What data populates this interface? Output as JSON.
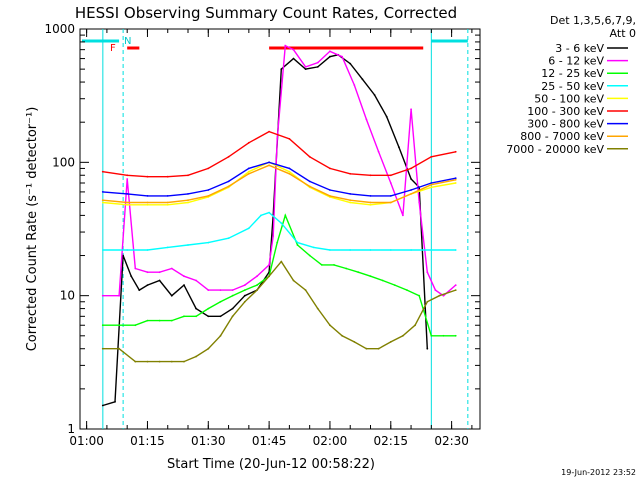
{
  "chart_data": {
    "type": "line",
    "title": "HESSI Observing Summary Count Rates, Corrected",
    "xlabel": "Start Time (20-Jun-12 00:58:22)",
    "ylabel": "Corrected Count Rate (s⁻¹ detector⁻¹)",
    "y_scale": "log",
    "ylim": [
      1,
      1000
    ],
    "xlim": [
      "00:58:22",
      "02:37:00"
    ],
    "x_ticks": [
      "01:00",
      "01:15",
      "01:30",
      "01:45",
      "02:00",
      "02:15",
      "02:30"
    ],
    "y_ticks": [
      "1",
      "10",
      "100",
      "1000"
    ],
    "legend_header": [
      "Det 1,3,5,6,7,9,",
      "Att 0"
    ],
    "timestamp": "19-Jun-2012 23:52",
    "annotations": {
      "flag_F": "F",
      "flag_N": "N"
    },
    "series": [
      {
        "name": "3 - 6 keV",
        "color": "#000000",
        "x": [
          "01:04",
          "01:07",
          "01:09",
          "01:11",
          "01:13",
          "01:15",
          "01:18",
          "01:21",
          "01:24",
          "01:27",
          "01:30",
          "01:33",
          "01:36",
          "01:39",
          "01:42",
          "01:45",
          "01:46",
          "01:48",
          "01:51",
          "01:54",
          "01:57",
          "02:00",
          "02:02",
          "02:05",
          "02:08",
          "02:11",
          "02:14",
          "02:17",
          "02:20",
          "02:22",
          "02:24"
        ],
        "y": [
          1.5,
          1.6,
          20,
          14,
          11,
          12,
          13,
          10,
          12,
          8,
          7,
          7,
          8,
          10,
          11,
          15,
          40,
          500,
          600,
          500,
          520,
          620,
          640,
          550,
          420,
          320,
          220,
          130,
          75,
          65,
          4
        ]
      },
      {
        "name": "6 - 12 keV",
        "color": "#ff00ff",
        "x": [
          "01:04",
          "01:08",
          "01:10",
          "01:12",
          "01:15",
          "01:18",
          "01:21",
          "01:24",
          "01:27",
          "01:30",
          "01:33",
          "01:36",
          "01:39",
          "01:42",
          "01:45",
          "01:46",
          "01:47",
          "01:49",
          "01:51",
          "01:54",
          "01:57",
          "02:00",
          "02:03",
          "02:06",
          "02:09",
          "02:12",
          "02:15",
          "02:18",
          "02:20",
          "02:22",
          "02:24",
          "02:26",
          "02:28",
          "02:31"
        ],
        "y": [
          10,
          10,
          75,
          16,
          15,
          15,
          16,
          14,
          13,
          11,
          11,
          11,
          12,
          14,
          17,
          28,
          150,
          750,
          700,
          520,
          560,
          680,
          620,
          380,
          210,
          120,
          70,
          40,
          250,
          50,
          15,
          11,
          10,
          12
        ]
      },
      {
        "name": "12 - 25 keV",
        "color": "#00ff00",
        "x": [
          "01:04",
          "01:08",
          "01:12",
          "01:15",
          "01:18",
          "01:21",
          "01:24",
          "01:27",
          "01:30",
          "01:33",
          "01:36",
          "01:39",
          "01:42",
          "01:45",
          "01:47",
          "01:49",
          "01:52",
          "01:55",
          "01:58",
          "02:01",
          "02:04",
          "02:07",
          "02:10",
          "02:13",
          "02:16",
          "02:19",
          "02:22",
          "02:25",
          "02:28",
          "02:31"
        ],
        "y": [
          6,
          6,
          6,
          6.5,
          6.5,
          6.5,
          7,
          7,
          8,
          9,
          10,
          11,
          12,
          14,
          25,
          40,
          24,
          20,
          17,
          17,
          16,
          15,
          14,
          13,
          12,
          11,
          10,
          5,
          5,
          5
        ]
      },
      {
        "name": "25 - 50 keV",
        "color": "#00ffff",
        "x": [
          "01:04",
          "01:10",
          "01:15",
          "01:20",
          "01:25",
          "01:30",
          "01:35",
          "01:40",
          "01:43",
          "01:45",
          "01:48",
          "01:52",
          "01:56",
          "02:00",
          "02:05",
          "02:10",
          "02:15",
          "02:20",
          "02:25",
          "02:31"
        ],
        "y": [
          22,
          22,
          22,
          23,
          24,
          25,
          27,
          32,
          40,
          42,
          35,
          25,
          23,
          22,
          22,
          22,
          22,
          22,
          22,
          22
        ]
      },
      {
        "name": "50 - 100 keV",
        "color": "#ffff00",
        "x": [
          "01:04",
          "01:10",
          "01:15",
          "01:20",
          "01:25",
          "01:30",
          "01:35",
          "01:40",
          "01:45",
          "01:50",
          "01:55",
          "02:00",
          "02:05",
          "02:10",
          "02:15",
          "02:20",
          "02:25",
          "02:31"
        ],
        "y": [
          50,
          48,
          48,
          48,
          50,
          55,
          65,
          85,
          100,
          85,
          65,
          55,
          50,
          48,
          50,
          58,
          65,
          70
        ]
      },
      {
        "name": "100 - 300 keV",
        "color": "#ff0000",
        "x": [
          "01:04",
          "01:10",
          "01:15",
          "01:20",
          "01:25",
          "01:30",
          "01:35",
          "01:40",
          "01:45",
          "01:50",
          "01:55",
          "02:00",
          "02:05",
          "02:10",
          "02:15",
          "02:20",
          "02:25",
          "02:31"
        ],
        "y": [
          85,
          80,
          78,
          78,
          80,
          90,
          110,
          140,
          170,
          150,
          110,
          90,
          82,
          80,
          80,
          90,
          110,
          120
        ]
      },
      {
        "name": "300 - 800 keV",
        "color": "#0000ff",
        "x": [
          "01:04",
          "01:10",
          "01:15",
          "01:20",
          "01:25",
          "01:30",
          "01:35",
          "01:40",
          "01:45",
          "01:50",
          "01:55",
          "02:00",
          "02:05",
          "02:10",
          "02:15",
          "02:20",
          "02:25",
          "02:31"
        ],
        "y": [
          60,
          58,
          56,
          56,
          58,
          62,
          72,
          90,
          100,
          90,
          72,
          62,
          58,
          56,
          56,
          62,
          70,
          76
        ]
      },
      {
        "name": "800 - 7000 keV",
        "color": "#ffa500",
        "x": [
          "01:04",
          "01:10",
          "01:15",
          "01:20",
          "01:25",
          "01:30",
          "01:35",
          "01:40",
          "01:45",
          "01:50",
          "01:55",
          "02:00",
          "02:05",
          "02:10",
          "02:15",
          "02:20",
          "02:25",
          "02:31"
        ],
        "y": [
          52,
          50,
          50,
          50,
          52,
          56,
          66,
          82,
          95,
          82,
          66,
          56,
          52,
          50,
          50,
          58,
          68,
          74
        ]
      },
      {
        "name": "7000 - 20000 keV",
        "color": "#808000",
        "x": [
          "01:04",
          "01:08",
          "01:12",
          "01:15",
          "01:18",
          "01:21",
          "01:24",
          "01:27",
          "01:30",
          "01:33",
          "01:36",
          "01:39",
          "01:42",
          "01:45",
          "01:48",
          "01:51",
          "01:54",
          "01:57",
          "02:00",
          "02:03",
          "02:06",
          "02:09",
          "02:12",
          "02:15",
          "02:18",
          "02:21",
          "02:24",
          "02:27",
          "02:31"
        ],
        "y": [
          4,
          4,
          3.2,
          3.2,
          3.2,
          3.2,
          3.2,
          3.5,
          4,
          5,
          7,
          9,
          11,
          14,
          18,
          13,
          11,
          8,
          6,
          5,
          4.5,
          4,
          4,
          4.5,
          5,
          6,
          9,
          10,
          11
        ]
      }
    ]
  }
}
